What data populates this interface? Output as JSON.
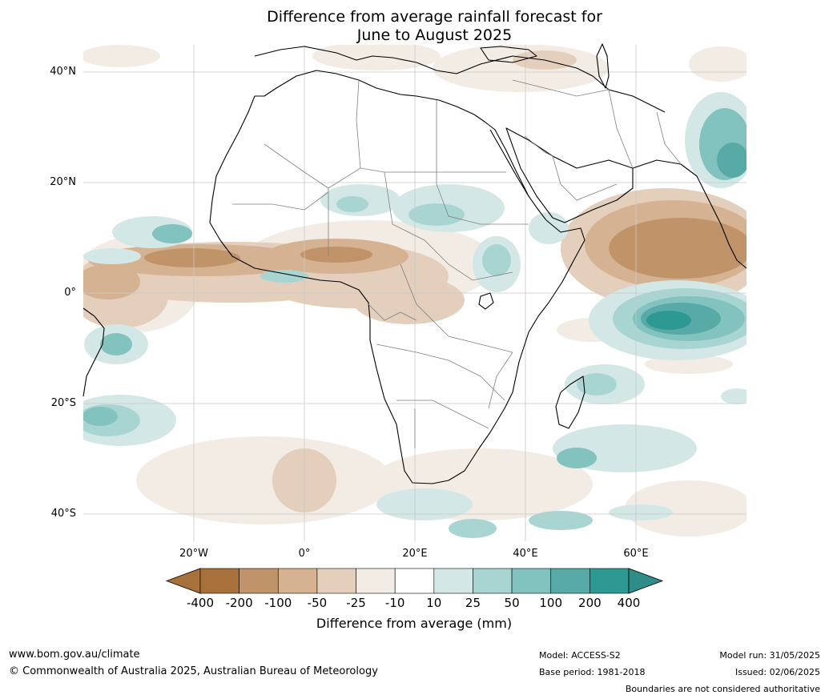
{
  "title_line1": "Difference from average rainfall forecast for",
  "title_line2": "June to August 2025",
  "latitude_labels": [
    "40°N",
    "20°N",
    "0°",
    "20°S",
    "40°S"
  ],
  "longitude_labels": [
    "20°W",
    "0°",
    "20°E",
    "40°E",
    "60°E"
  ],
  "colorbar": {
    "label": "Difference from average (mm)",
    "ticks": [
      "-400",
      "-200",
      "-100",
      "-50",
      "-25",
      "-10",
      "10",
      "25",
      "50",
      "100",
      "200",
      "400"
    ],
    "colors": [
      "#a8703a",
      "#c09468",
      "#d5b392",
      "#e3cfbc",
      "#f2ece5",
      "#ffffff",
      "#d3e8e6",
      "#a8d5d2",
      "#82c2bf",
      "#58aaa7",
      "#2e9993"
    ],
    "below_color": "#a8703a",
    "above_color": "#2e8d88"
  },
  "footer": {
    "website": "www.bom.gov.au/climate",
    "copyright": "© Commonwealth of Australia 2025, Australian Bureau of Meteorology",
    "model": "Model: ACCESS-S2",
    "base_period": "Base period: 1981-2018",
    "model_run": "Model run: 31/05/2025",
    "issued": "Issued: 02/06/2025",
    "boundaries_note": "Boundaries are not considered authoritative"
  }
}
